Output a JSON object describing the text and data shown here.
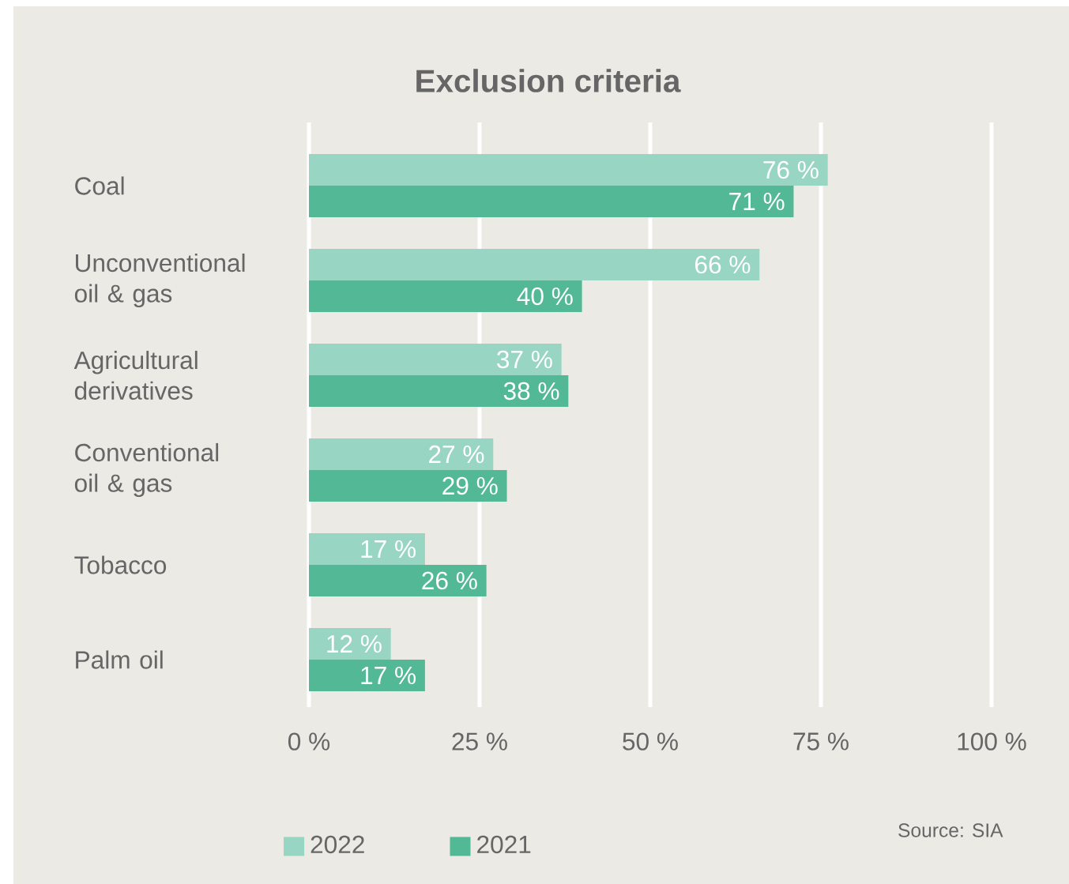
{
  "chart_data": {
    "type": "bar",
    "orientation": "horizontal",
    "title": "Exclusion criteria",
    "categories": [
      "Coal",
      "Unconventional oil & gas",
      "Agricultural derivatives",
      "Conventional oil & gas",
      "Tobacco",
      "Palm oil"
    ],
    "series": [
      {
        "name": "2022",
        "color": "#98d5c2",
        "values": [
          76,
          66,
          37,
          27,
          17,
          12
        ],
        "value_labels": [
          "76 %",
          "66 %",
          "37 %",
          "27 %",
          "17 %",
          "12 %"
        ]
      },
      {
        "name": "2021",
        "color": "#52b896",
        "values": [
          71,
          40,
          38,
          29,
          26,
          17
        ],
        "value_labels": [
          "71 %",
          "40 %",
          "38 %",
          "29 %",
          "26 %",
          "17 %"
        ]
      }
    ],
    "xlim": [
      0,
      100
    ],
    "xticks": [
      {
        "value": 0,
        "label": "0 %"
      },
      {
        "value": 25,
        "label": "25 %"
      },
      {
        "value": 50,
        "label": "50 %"
      },
      {
        "value": 75,
        "label": "75 %"
      },
      {
        "value": 100,
        "label": "100 %"
      }
    ],
    "grid": "x",
    "legend": "bottom",
    "annotations": [
      "Source: SIA"
    ]
  }
}
